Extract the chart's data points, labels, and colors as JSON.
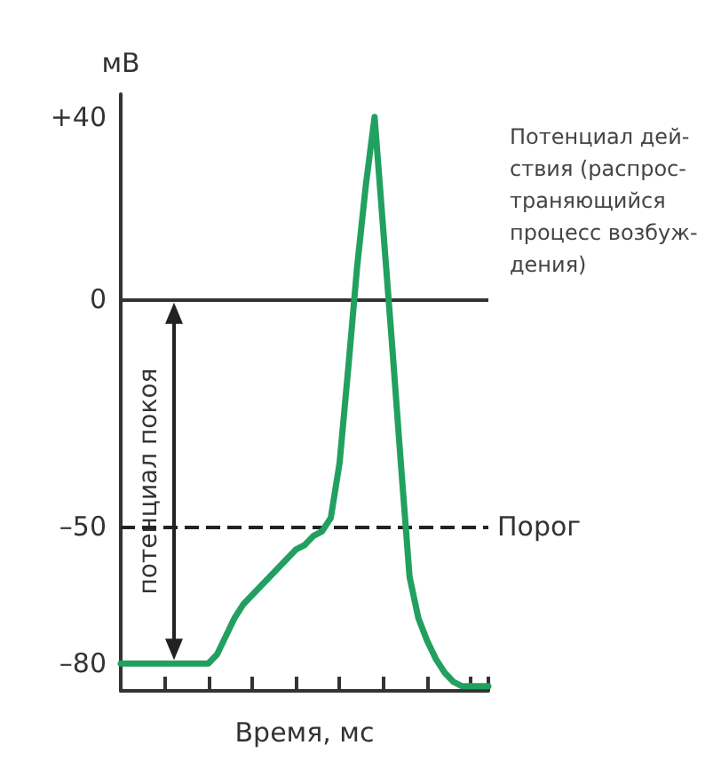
{
  "chart_data": {
    "type": "line",
    "ylabel": "мВ",
    "xlabel": "Время, мс",
    "categories": [
      null,
      null,
      null,
      null,
      null,
      null,
      null,
      null,
      null,
      null,
      null,
      null,
      null,
      null,
      null,
      null,
      null,
      null,
      null,
      null,
      null,
      null,
      null,
      null,
      null,
      null,
      null,
      null,
      null,
      null,
      null,
      null,
      null,
      null,
      null,
      null,
      null,
      null,
      null,
      null,
      null,
      null,
      null
    ],
    "series": [
      {
        "color": "#22a060",
        "values": [
          -80,
          -80,
          -80,
          -80,
          -80,
          -80,
          -80,
          -80,
          -80,
          -80,
          -80,
          -78,
          -74,
          -70,
          -67,
          -65,
          -63,
          -61,
          -59,
          -57,
          -55,
          -54,
          -52,
          -51,
          -48,
          -36,
          -15,
          7,
          25,
          40,
          15,
          -10,
          -36,
          -61,
          -70,
          -75,
          -79,
          -82,
          -84,
          -85,
          -85,
          -85,
          -85
        ]
      }
    ],
    "ylim": [
      -86,
      45
    ],
    "yticks": [
      {
        "value": 40,
        "label": "+40"
      },
      0,
      {
        "value": -50,
        "label": "–50"
      },
      {
        "value": -80,
        "label": "–80"
      }
    ],
    "tick_labels": "y",
    "grid": false,
    "line_style": "solid",
    "ref_lines": [
      {
        "axis": "y",
        "value": 0,
        "label": null,
        "color": "#333333",
        "line_style": "solid"
      },
      {
        "axis": "y",
        "value": -50,
        "label": "Порог",
        "color": "#222222",
        "line_style": "dashed"
      }
    ],
    "annotations": [
      "потенциал покоя",
      "Потенциал дей-\nствия (распрос-\nтраняющийся\nпроцесс возбуж-\nдения)"
    ]
  }
}
